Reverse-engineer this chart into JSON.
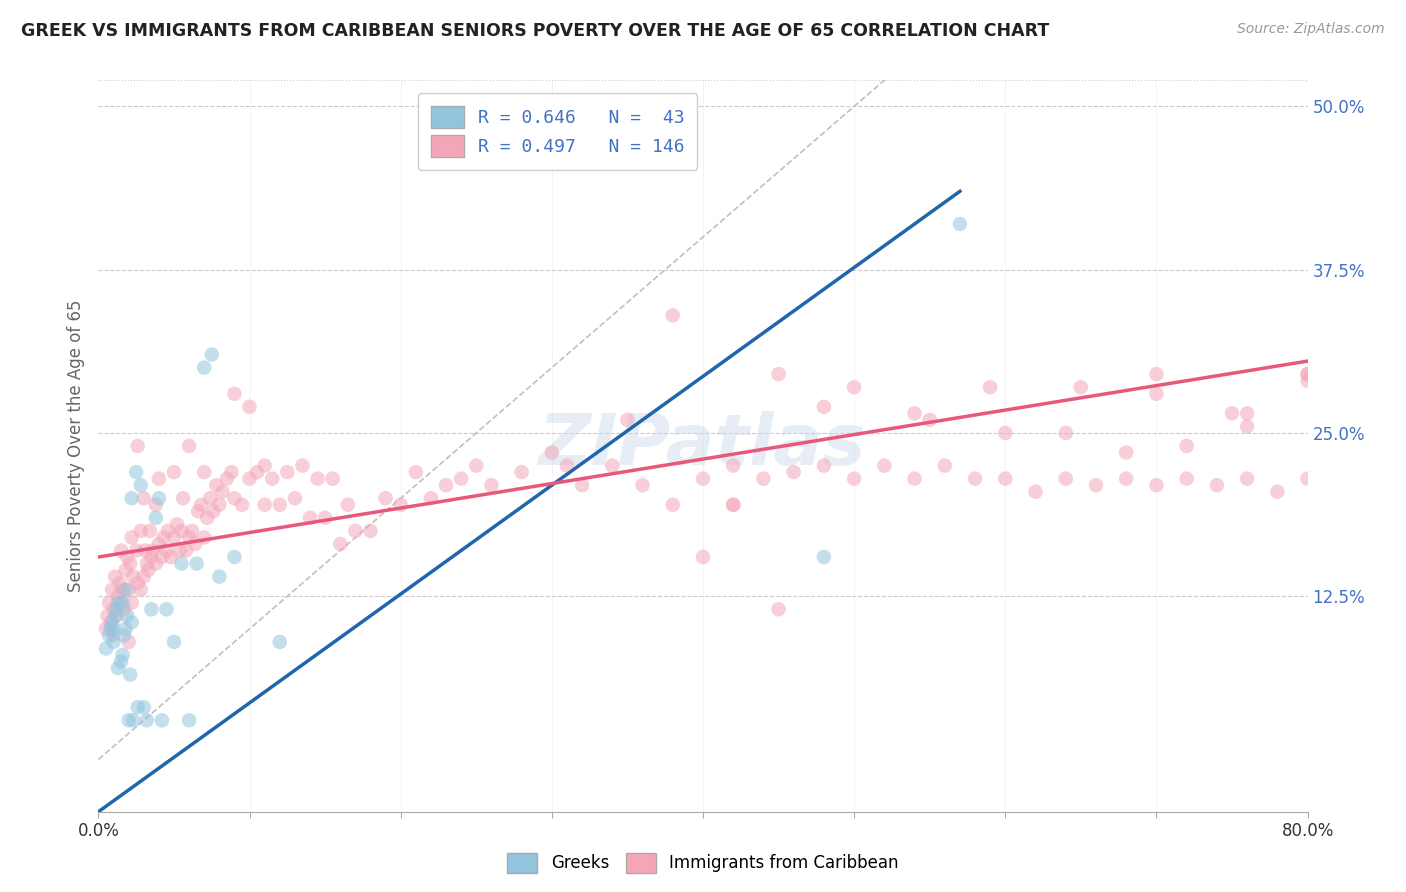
{
  "title": "GREEK VS IMMIGRANTS FROM CARIBBEAN SENIORS POVERTY OVER THE AGE OF 65 CORRELATION CHART",
  "source": "Source: ZipAtlas.com",
  "ylabel": "Seniors Poverty Over the Age of 65",
  "xmin": 0.0,
  "xmax": 0.8,
  "ymin": -0.04,
  "ymax": 0.52,
  "yticks": [
    0.0,
    0.125,
    0.25,
    0.375,
    0.5
  ],
  "ytick_labels": [
    "",
    "12.5%",
    "25.0%",
    "37.5%",
    "50.0%"
  ],
  "xticks": [
    0.0,
    0.1,
    0.2,
    0.3,
    0.4,
    0.5,
    0.6,
    0.7,
    0.8
  ],
  "color_greek": "#92c5de",
  "color_caribbean": "#f4a6b8",
  "color_trend_greek": "#2166ac",
  "color_trend_caribbean": "#e8587a",
  "color_diagonal": "#c0c0c0",
  "background_color": "#ffffff",
  "watermark": "ZIPatlas",
  "greek_trend_x0": 0.0,
  "greek_trend_y0": -0.04,
  "greek_trend_x1": 0.57,
  "greek_trend_y1": 0.435,
  "carib_trend_x0": 0.0,
  "carib_trend_y0": 0.155,
  "carib_trend_x1": 0.8,
  "carib_trend_y1": 0.305,
  "greek_x": [
    0.005,
    0.007,
    0.008,
    0.009,
    0.01,
    0.01,
    0.011,
    0.012,
    0.013,
    0.013,
    0.015,
    0.016,
    0.016,
    0.017,
    0.018,
    0.018,
    0.019,
    0.02,
    0.021,
    0.022,
    0.022,
    0.023,
    0.025,
    0.026,
    0.028,
    0.03,
    0.032,
    0.035,
    0.038,
    0.04,
    0.042,
    0.045,
    0.05,
    0.055,
    0.06,
    0.065,
    0.07,
    0.075,
    0.08,
    0.09,
    0.12,
    0.48,
    0.57
  ],
  "greek_y": [
    0.085,
    0.095,
    0.1,
    0.105,
    0.09,
    0.1,
    0.11,
    0.115,
    0.07,
    0.12,
    0.075,
    0.08,
    0.12,
    0.095,
    0.1,
    0.13,
    0.11,
    0.03,
    0.065,
    0.105,
    0.2,
    0.03,
    0.22,
    0.04,
    0.21,
    0.04,
    0.03,
    0.115,
    0.185,
    0.2,
    0.03,
    0.115,
    0.09,
    0.15,
    0.03,
    0.15,
    0.3,
    0.31,
    0.14,
    0.155,
    0.09,
    0.155,
    0.41
  ],
  "caribbean_x": [
    0.005,
    0.006,
    0.007,
    0.008,
    0.009,
    0.01,
    0.01,
    0.011,
    0.012,
    0.013,
    0.014,
    0.015,
    0.015,
    0.016,
    0.017,
    0.018,
    0.019,
    0.02,
    0.02,
    0.021,
    0.022,
    0.022,
    0.023,
    0.025,
    0.026,
    0.026,
    0.028,
    0.028,
    0.03,
    0.03,
    0.031,
    0.032,
    0.033,
    0.034,
    0.035,
    0.036,
    0.038,
    0.038,
    0.04,
    0.04,
    0.042,
    0.043,
    0.045,
    0.046,
    0.048,
    0.05,
    0.05,
    0.052,
    0.054,
    0.055,
    0.056,
    0.058,
    0.06,
    0.06,
    0.062,
    0.064,
    0.066,
    0.068,
    0.07,
    0.07,
    0.072,
    0.074,
    0.076,
    0.078,
    0.08,
    0.082,
    0.085,
    0.088,
    0.09,
    0.09,
    0.095,
    0.1,
    0.1,
    0.105,
    0.11,
    0.11,
    0.115,
    0.12,
    0.125,
    0.13,
    0.135,
    0.14,
    0.145,
    0.15,
    0.155,
    0.16,
    0.165,
    0.17,
    0.18,
    0.19,
    0.2,
    0.21,
    0.22,
    0.23,
    0.24,
    0.25,
    0.26,
    0.28,
    0.3,
    0.31,
    0.32,
    0.34,
    0.36,
    0.38,
    0.4,
    0.42,
    0.44,
    0.46,
    0.48,
    0.5,
    0.52,
    0.54,
    0.56,
    0.58,
    0.6,
    0.62,
    0.64,
    0.66,
    0.68,
    0.7,
    0.72,
    0.74,
    0.76,
    0.78,
    0.8,
    0.35,
    0.38,
    0.42,
    0.45,
    0.5,
    0.55,
    0.6,
    0.65,
    0.7,
    0.75,
    0.8,
    0.42,
    0.48,
    0.54,
    0.59,
    0.64,
    0.7,
    0.76,
    0.8,
    0.68,
    0.72,
    0.76,
    0.8,
    0.4,
    0.45
  ],
  "caribbean_y": [
    0.1,
    0.11,
    0.12,
    0.105,
    0.13,
    0.095,
    0.115,
    0.14,
    0.11,
    0.125,
    0.135,
    0.12,
    0.16,
    0.13,
    0.115,
    0.145,
    0.155,
    0.09,
    0.13,
    0.15,
    0.17,
    0.12,
    0.14,
    0.16,
    0.135,
    0.24,
    0.13,
    0.175,
    0.14,
    0.2,
    0.16,
    0.15,
    0.145,
    0.175,
    0.155,
    0.16,
    0.15,
    0.195,
    0.165,
    0.215,
    0.155,
    0.17,
    0.16,
    0.175,
    0.155,
    0.17,
    0.22,
    0.18,
    0.16,
    0.175,
    0.2,
    0.16,
    0.17,
    0.24,
    0.175,
    0.165,
    0.19,
    0.195,
    0.17,
    0.22,
    0.185,
    0.2,
    0.19,
    0.21,
    0.195,
    0.205,
    0.215,
    0.22,
    0.2,
    0.28,
    0.195,
    0.215,
    0.27,
    0.22,
    0.195,
    0.225,
    0.215,
    0.195,
    0.22,
    0.2,
    0.225,
    0.185,
    0.215,
    0.185,
    0.215,
    0.165,
    0.195,
    0.175,
    0.175,
    0.2,
    0.195,
    0.22,
    0.2,
    0.21,
    0.215,
    0.225,
    0.21,
    0.22,
    0.235,
    0.225,
    0.21,
    0.225,
    0.21,
    0.195,
    0.215,
    0.195,
    0.215,
    0.22,
    0.225,
    0.215,
    0.225,
    0.215,
    0.225,
    0.215,
    0.215,
    0.205,
    0.215,
    0.21,
    0.215,
    0.21,
    0.215,
    0.21,
    0.215,
    0.205,
    0.215,
    0.26,
    0.34,
    0.195,
    0.295,
    0.285,
    0.26,
    0.25,
    0.285,
    0.295,
    0.265,
    0.295,
    0.225,
    0.27,
    0.265,
    0.285,
    0.25,
    0.28,
    0.265,
    0.295,
    0.235,
    0.24,
    0.255,
    0.29,
    0.155,
    0.115
  ]
}
